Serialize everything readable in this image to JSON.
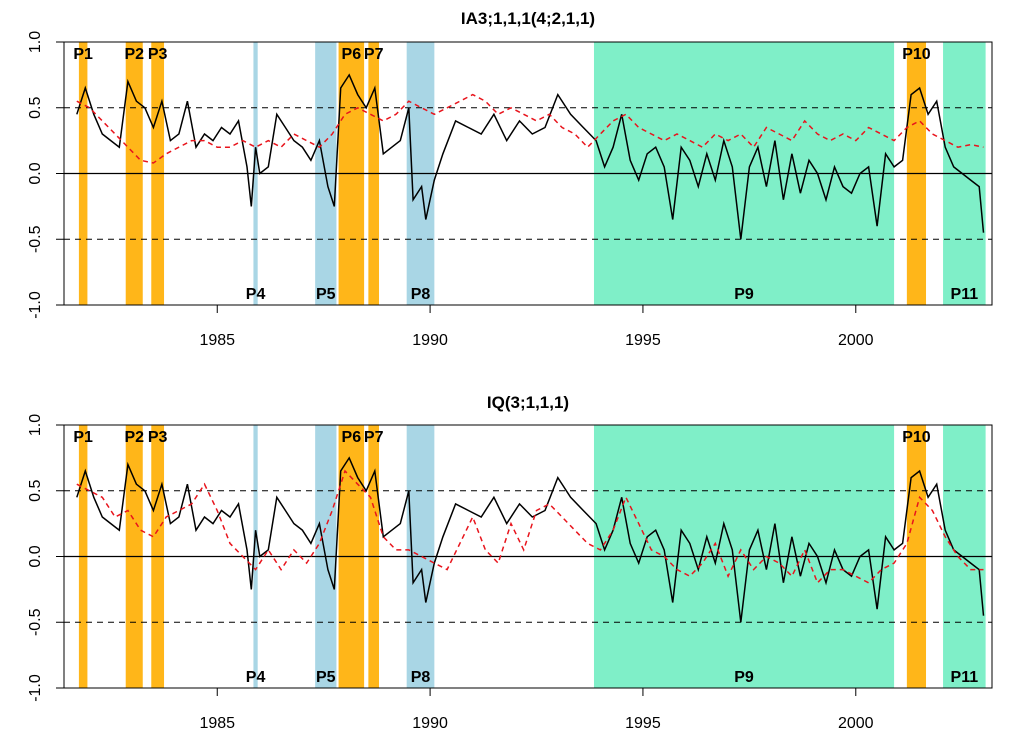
{
  "colors": {
    "expansion": "#FFB619",
    "contraction": "#A9D6E5",
    "long_period": "#7FEFC8",
    "series_solid": "#000000",
    "series_dashed": "#E8141C"
  },
  "chart_data": [
    {
      "type": "line",
      "title": "IA3;1,1,1(4;2,1,1)",
      "xlabel": "",
      "ylabel": "",
      "xlim": [
        1981.4,
        2003.2
      ],
      "ylim": [
        -1.0,
        1.0
      ],
      "x_ticks": [
        "1985",
        "1990",
        "1995",
        "2000"
      ],
      "y_ticks": [
        "-1.0",
        "-0.5",
        "0.0",
        "0.5",
        "1.0"
      ],
      "reference_lines": {
        "solid": [
          0.0
        ],
        "dashed": [
          -0.5,
          0.5
        ]
      },
      "periods": [
        {
          "label": "P1",
          "start": 1981.75,
          "end": 1981.95,
          "kind": "expansion",
          "label_pos": "top"
        },
        {
          "label": "P2",
          "start": 1982.85,
          "end": 1983.25,
          "kind": "expansion",
          "label_pos": "top"
        },
        {
          "label": "P3",
          "start": 1983.45,
          "end": 1983.75,
          "kind": "expansion",
          "label_pos": "top"
        },
        {
          "label": "P4",
          "start": 1985.85,
          "end": 1985.95,
          "kind": "contraction",
          "label_pos": "bottom"
        },
        {
          "label": "P5",
          "start": 1987.3,
          "end": 1987.8,
          "kind": "contraction",
          "label_pos": "bottom"
        },
        {
          "label": "P6",
          "start": 1987.85,
          "end": 1988.45,
          "kind": "expansion",
          "label_pos": "top"
        },
        {
          "label": "P7",
          "start": 1988.55,
          "end": 1988.8,
          "kind": "expansion",
          "label_pos": "top"
        },
        {
          "label": "P8",
          "start": 1989.45,
          "end": 1990.1,
          "kind": "contraction",
          "label_pos": "bottom"
        },
        {
          "label": "P9",
          "start": 1993.85,
          "end": 2000.9,
          "kind": "long",
          "label_pos": "bottom"
        },
        {
          "label": "P10",
          "start": 2001.2,
          "end": 2001.65,
          "kind": "expansion",
          "label_pos": "top"
        },
        {
          "label": "P11",
          "start": 2002.05,
          "end": 2003.05,
          "kind": "long",
          "label_pos": "bottom"
        }
      ],
      "series": [
        {
          "style": "solid",
          "color": "#000000",
          "x": [
            1981.7,
            1981.9,
            1982.1,
            1982.3,
            1982.5,
            1982.7,
            1982.9,
            1983.1,
            1983.3,
            1983.5,
            1983.7,
            1983.9,
            1984.1,
            1984.3,
            1984.5,
            1984.7,
            1984.9,
            1985.1,
            1985.3,
            1985.5,
            1985.7,
            1985.8,
            1985.9,
            1986.0,
            1986.2,
            1986.4,
            1986.6,
            1986.8,
            1987.0,
            1987.2,
            1987.4,
            1987.6,
            1987.75,
            1987.9,
            1988.1,
            1988.3,
            1988.5,
            1988.7,
            1988.9,
            1989.1,
            1989.3,
            1989.5,
            1989.6,
            1989.8,
            1989.9,
            1990.1,
            1990.3,
            1990.6,
            1990.9,
            1991.2,
            1991.5,
            1991.8,
            1992.1,
            1992.4,
            1992.7,
            1993.0,
            1993.3,
            1993.6,
            1993.9,
            1994.1,
            1994.3,
            1994.5,
            1994.7,
            1994.9,
            1995.1,
            1995.3,
            1995.5,
            1995.7,
            1995.9,
            1996.1,
            1996.3,
            1996.5,
            1996.7,
            1996.9,
            1997.1,
            1997.3,
            1997.5,
            1997.7,
            1997.9,
            1998.1,
            1998.3,
            1998.5,
            1998.7,
            1998.9,
            1999.1,
            1999.3,
            1999.5,
            1999.7,
            1999.9,
            2000.1,
            2000.3,
            2000.5,
            2000.7,
            2000.9,
            2001.1,
            2001.3,
            2001.5,
            2001.7,
            2001.9,
            2002.1,
            2002.3,
            2002.5,
            2002.7,
            2002.9,
            2003.0
          ],
          "values": [
            0.45,
            0.65,
            0.45,
            0.3,
            0.25,
            0.2,
            0.7,
            0.55,
            0.5,
            0.35,
            0.55,
            0.25,
            0.3,
            0.55,
            0.2,
            0.3,
            0.25,
            0.35,
            0.3,
            0.4,
            0.05,
            -0.25,
            0.2,
            0.0,
            0.05,
            0.45,
            0.35,
            0.25,
            0.2,
            0.1,
            0.25,
            -0.1,
            -0.25,
            0.65,
            0.75,
            0.6,
            0.5,
            0.65,
            0.15,
            0.2,
            0.25,
            0.5,
            -0.2,
            -0.1,
            -0.35,
            -0.05,
            0.15,
            0.4,
            0.35,
            0.3,
            0.45,
            0.25,
            0.4,
            0.3,
            0.35,
            0.6,
            0.45,
            0.35,
            0.25,
            0.05,
            0.2,
            0.45,
            0.1,
            -0.05,
            0.15,
            0.2,
            0.05,
            -0.35,
            0.2,
            0.1,
            -0.1,
            0.15,
            -0.05,
            0.25,
            0.05,
            -0.5,
            0.05,
            0.2,
            -0.1,
            0.25,
            -0.2,
            0.15,
            -0.15,
            0.1,
            0.0,
            -0.2,
            0.05,
            -0.1,
            -0.15,
            0.0,
            0.05,
            -0.4,
            0.15,
            0.05,
            0.1,
            0.6,
            0.65,
            0.45,
            0.55,
            0.2,
            0.05,
            0.0,
            -0.05,
            -0.1,
            -0.45
          ]
        },
        {
          "style": "dashed",
          "color": "#E8141C",
          "x": [
            1981.7,
            1982.0,
            1982.3,
            1982.6,
            1982.9,
            1983.2,
            1983.5,
            1983.8,
            1984.1,
            1984.4,
            1984.7,
            1985.0,
            1985.3,
            1985.6,
            1985.9,
            1986.2,
            1986.5,
            1986.8,
            1987.1,
            1987.4,
            1987.7,
            1988.0,
            1988.3,
            1988.6,
            1988.9,
            1989.2,
            1989.5,
            1989.8,
            1990.1,
            1990.4,
            1990.7,
            1991.0,
            1991.3,
            1991.6,
            1991.9,
            1992.2,
            1992.5,
            1992.8,
            1993.1,
            1993.4,
            1993.7,
            1994.0,
            1994.3,
            1994.6,
            1994.9,
            1995.2,
            1995.5,
            1995.8,
            1996.1,
            1996.4,
            1996.7,
            1997.0,
            1997.3,
            1997.6,
            1997.9,
            1998.2,
            1998.5,
            1998.8,
            1999.1,
            1999.4,
            1999.7,
            2000.0,
            2000.3,
            2000.6,
            2000.9,
            2001.2,
            2001.5,
            2001.8,
            2002.1,
            2002.4,
            2002.7,
            2003.0
          ],
          "values": [
            0.55,
            0.5,
            0.4,
            0.3,
            0.2,
            0.1,
            0.08,
            0.15,
            0.2,
            0.25,
            0.25,
            0.2,
            0.2,
            0.25,
            0.2,
            0.25,
            0.2,
            0.3,
            0.25,
            0.2,
            0.3,
            0.45,
            0.5,
            0.45,
            0.4,
            0.45,
            0.55,
            0.5,
            0.45,
            0.5,
            0.55,
            0.6,
            0.55,
            0.45,
            0.5,
            0.45,
            0.4,
            0.45,
            0.35,
            0.3,
            0.2,
            0.3,
            0.4,
            0.45,
            0.35,
            0.3,
            0.25,
            0.3,
            0.25,
            0.2,
            0.3,
            0.25,
            0.3,
            0.2,
            0.35,
            0.3,
            0.25,
            0.4,
            0.3,
            0.25,
            0.3,
            0.25,
            0.35,
            0.3,
            0.25,
            0.35,
            0.4,
            0.3,
            0.25,
            0.2,
            0.22,
            0.2
          ]
        }
      ]
    },
    {
      "type": "line",
      "title": "IQ(3;1,1,1)",
      "xlabel": "",
      "ylabel": "",
      "xlim": [
        1981.4,
        2003.2
      ],
      "ylim": [
        -1.0,
        1.0
      ],
      "x_ticks": [
        "1985",
        "1990",
        "1995",
        "2000"
      ],
      "y_ticks": [
        "-1.0",
        "-0.5",
        "0.0",
        "0.5",
        "1.0"
      ],
      "reference_lines": {
        "solid": [
          0.0
        ],
        "dashed": [
          -0.5,
          0.5
        ]
      },
      "periods": [
        {
          "label": "P1",
          "start": 1981.75,
          "end": 1981.95,
          "kind": "expansion",
          "label_pos": "top"
        },
        {
          "label": "P2",
          "start": 1982.85,
          "end": 1983.25,
          "kind": "expansion",
          "label_pos": "top"
        },
        {
          "label": "P3",
          "start": 1983.45,
          "end": 1983.75,
          "kind": "expansion",
          "label_pos": "top"
        },
        {
          "label": "P4",
          "start": 1985.85,
          "end": 1985.95,
          "kind": "contraction",
          "label_pos": "bottom"
        },
        {
          "label": "P5",
          "start": 1987.3,
          "end": 1987.8,
          "kind": "contraction",
          "label_pos": "bottom"
        },
        {
          "label": "P6",
          "start": 1987.85,
          "end": 1988.45,
          "kind": "expansion",
          "label_pos": "top"
        },
        {
          "label": "P7",
          "start": 1988.55,
          "end": 1988.8,
          "kind": "expansion",
          "label_pos": "top"
        },
        {
          "label": "P8",
          "start": 1989.45,
          "end": 1990.1,
          "kind": "contraction",
          "label_pos": "bottom"
        },
        {
          "label": "P9",
          "start": 1993.85,
          "end": 2000.9,
          "kind": "long",
          "label_pos": "bottom"
        },
        {
          "label": "P10",
          "start": 2001.2,
          "end": 2001.65,
          "kind": "expansion",
          "label_pos": "top"
        },
        {
          "label": "P11",
          "start": 2002.05,
          "end": 2003.05,
          "kind": "long",
          "label_pos": "bottom"
        }
      ],
      "series": [
        {
          "style": "solid",
          "color": "#000000",
          "x": [
            1981.7,
            1981.9,
            1982.1,
            1982.3,
            1982.5,
            1982.7,
            1982.9,
            1983.1,
            1983.3,
            1983.5,
            1983.7,
            1983.9,
            1984.1,
            1984.3,
            1984.5,
            1984.7,
            1984.9,
            1985.1,
            1985.3,
            1985.5,
            1985.7,
            1985.8,
            1985.9,
            1986.0,
            1986.2,
            1986.4,
            1986.6,
            1986.8,
            1987.0,
            1987.2,
            1987.4,
            1987.6,
            1987.75,
            1987.9,
            1988.1,
            1988.3,
            1988.5,
            1988.7,
            1988.9,
            1989.1,
            1989.3,
            1989.5,
            1989.6,
            1989.8,
            1989.9,
            1990.1,
            1990.3,
            1990.6,
            1990.9,
            1991.2,
            1991.5,
            1991.8,
            1992.1,
            1992.4,
            1992.7,
            1993.0,
            1993.3,
            1993.6,
            1993.9,
            1994.1,
            1994.3,
            1994.5,
            1994.7,
            1994.9,
            1995.1,
            1995.3,
            1995.5,
            1995.7,
            1995.9,
            1996.1,
            1996.3,
            1996.5,
            1996.7,
            1996.9,
            1997.1,
            1997.3,
            1997.5,
            1997.7,
            1997.9,
            1998.1,
            1998.3,
            1998.5,
            1998.7,
            1998.9,
            1999.1,
            1999.3,
            1999.5,
            1999.7,
            1999.9,
            2000.1,
            2000.3,
            2000.5,
            2000.7,
            2000.9,
            2001.1,
            2001.3,
            2001.5,
            2001.7,
            2001.9,
            2002.1,
            2002.3,
            2002.5,
            2002.7,
            2002.9,
            2003.0
          ],
          "values": [
            0.45,
            0.65,
            0.45,
            0.3,
            0.25,
            0.2,
            0.7,
            0.55,
            0.5,
            0.35,
            0.55,
            0.25,
            0.3,
            0.55,
            0.2,
            0.3,
            0.25,
            0.35,
            0.3,
            0.4,
            0.05,
            -0.25,
            0.2,
            0.0,
            0.05,
            0.45,
            0.35,
            0.25,
            0.2,
            0.1,
            0.25,
            -0.1,
            -0.25,
            0.65,
            0.75,
            0.6,
            0.5,
            0.65,
            0.15,
            0.2,
            0.25,
            0.5,
            -0.2,
            -0.1,
            -0.35,
            -0.05,
            0.15,
            0.4,
            0.35,
            0.3,
            0.45,
            0.25,
            0.4,
            0.3,
            0.35,
            0.6,
            0.45,
            0.35,
            0.25,
            0.05,
            0.2,
            0.45,
            0.1,
            -0.05,
            0.15,
            0.2,
            0.05,
            -0.35,
            0.2,
            0.1,
            -0.1,
            0.15,
            -0.05,
            0.25,
            0.05,
            -0.5,
            0.05,
            0.2,
            -0.1,
            0.25,
            -0.2,
            0.15,
            -0.15,
            0.1,
            0.0,
            -0.2,
            0.05,
            -0.1,
            -0.15,
            0.0,
            0.05,
            -0.4,
            0.15,
            0.05,
            0.1,
            0.6,
            0.65,
            0.45,
            0.55,
            0.2,
            0.05,
            0.0,
            -0.05,
            -0.1,
            -0.45
          ]
        },
        {
          "style": "dashed",
          "color": "#E8141C",
          "x": [
            1981.7,
            1982.0,
            1982.3,
            1982.6,
            1982.9,
            1983.2,
            1983.5,
            1983.8,
            1984.1,
            1984.4,
            1984.7,
            1985.0,
            1985.3,
            1985.6,
            1985.9,
            1986.2,
            1986.5,
            1986.8,
            1987.1,
            1987.4,
            1987.7,
            1988.0,
            1988.3,
            1988.6,
            1988.9,
            1989.2,
            1989.5,
            1989.8,
            1990.1,
            1990.4,
            1990.7,
            1991.0,
            1991.3,
            1991.6,
            1991.9,
            1992.2,
            1992.5,
            1992.8,
            1993.1,
            1993.4,
            1993.7,
            1994.0,
            1994.3,
            1994.6,
            1994.9,
            1995.2,
            1995.5,
            1995.8,
            1996.1,
            1996.4,
            1996.7,
            1997.0,
            1997.3,
            1997.6,
            1997.9,
            1998.2,
            1998.5,
            1998.8,
            1999.1,
            1999.4,
            1999.7,
            2000.0,
            2000.3,
            2000.6,
            2000.9,
            2001.2,
            2001.5,
            2001.8,
            2002.1,
            2002.4,
            2002.7,
            2003.0
          ],
          "values": [
            0.55,
            0.5,
            0.45,
            0.3,
            0.35,
            0.2,
            0.15,
            0.3,
            0.35,
            0.4,
            0.55,
            0.35,
            0.1,
            0.0,
            -0.1,
            0.05,
            -0.1,
            0.05,
            -0.05,
            0.1,
            0.35,
            0.65,
            0.55,
            0.45,
            0.15,
            0.05,
            0.05,
            0.0,
            -0.05,
            -0.1,
            0.1,
            0.3,
            0.05,
            -0.05,
            0.25,
            0.05,
            0.35,
            0.4,
            0.3,
            0.2,
            0.1,
            0.05,
            0.2,
            0.45,
            0.25,
            0.05,
            0.0,
            -0.1,
            -0.15,
            -0.05,
            0.1,
            -0.15,
            0.05,
            -0.1,
            0.0,
            -0.05,
            -0.15,
            0.05,
            -0.2,
            -0.1,
            -0.1,
            -0.15,
            -0.2,
            -0.1,
            -0.05,
            0.1,
            0.45,
            0.35,
            0.15,
            0.0,
            -0.1,
            -0.1
          ]
        }
      ]
    }
  ]
}
